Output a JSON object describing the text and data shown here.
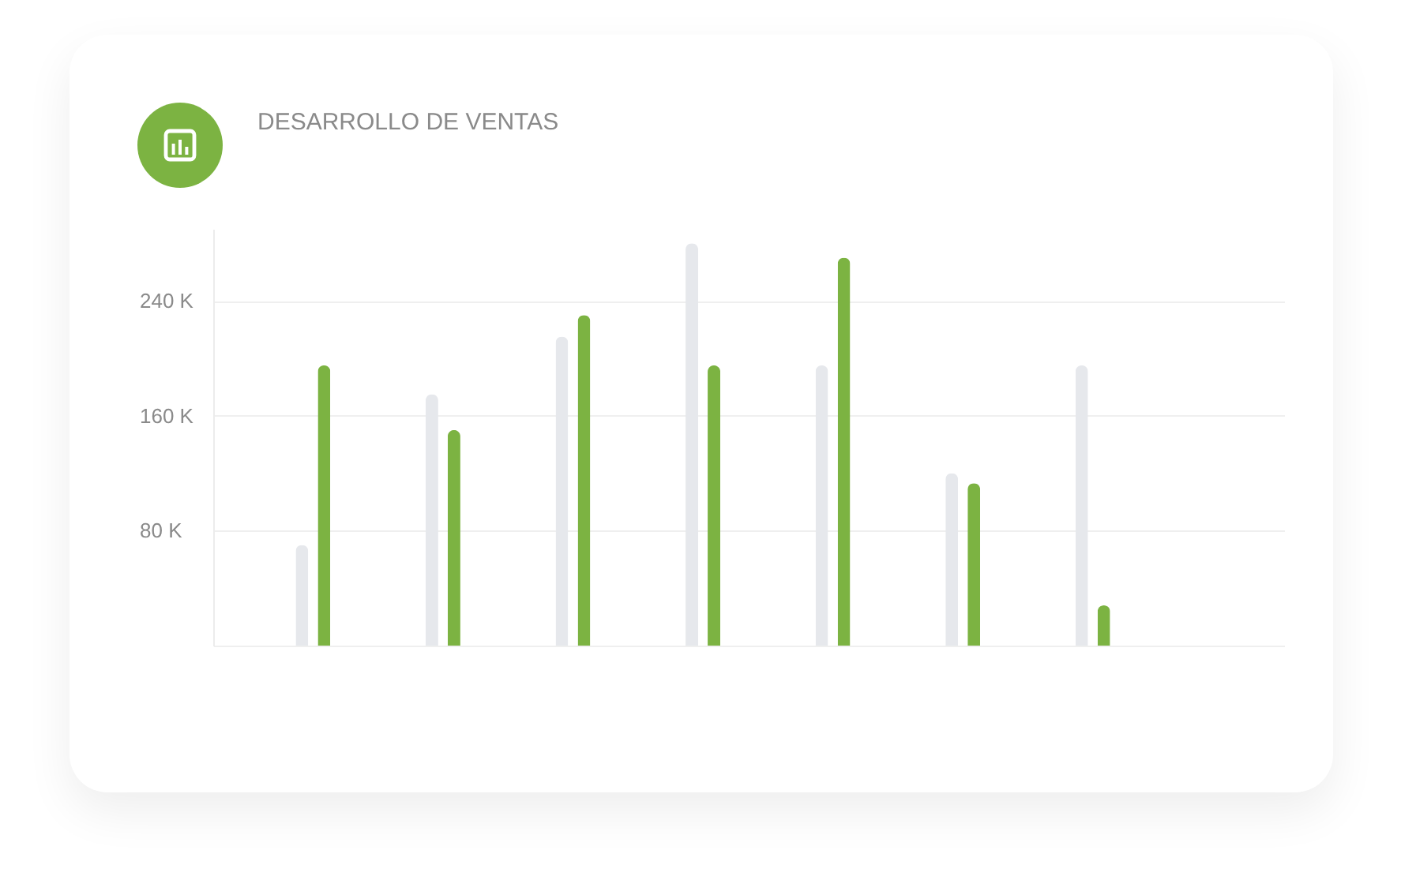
{
  "chart_data": {
    "type": "bar",
    "title": "DESARROLLO DE VENTAS",
    "categories": [
      null,
      null,
      null,
      null,
      null,
      null,
      null
    ],
    "series": [
      {
        "color": "#e6e8ec",
        "values": [
          70000,
          175000,
          215000,
          280000,
          195000,
          120000,
          195000
        ]
      },
      {
        "color": "#7cb342",
        "values": [
          195000,
          150000,
          230000,
          195000,
          270000,
          113000,
          28000
        ]
      }
    ],
    "ylim": [
      0,
      290000
    ],
    "yticks": [
      {
        "value": 0,
        "label": null
      },
      {
        "value": 80000,
        "label": "80 K"
      },
      {
        "value": 160000,
        "label": "160 K"
      },
      {
        "value": 240000,
        "label": "240 K"
      }
    ],
    "grid": "y",
    "tick_labels": "y"
  }
}
